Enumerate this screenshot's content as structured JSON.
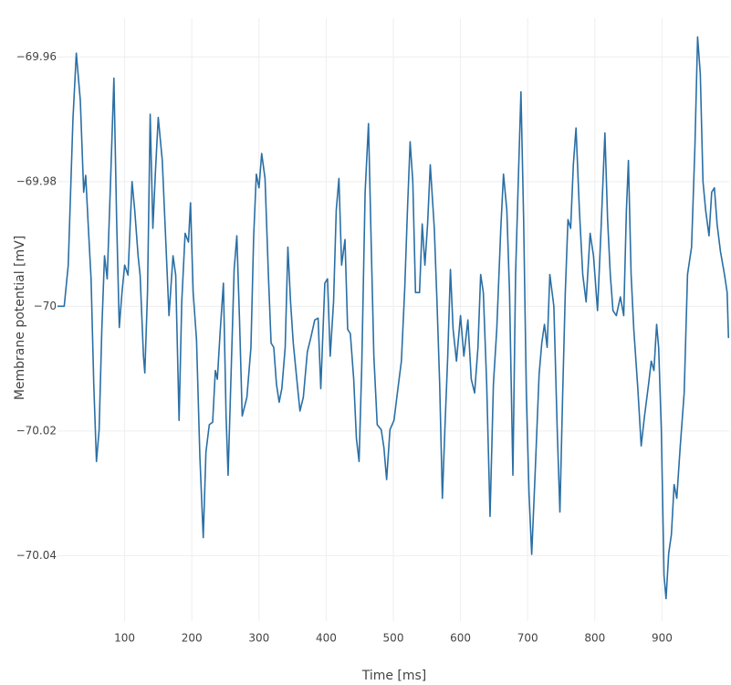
{
  "chart_data": {
    "type": "line",
    "x_label": "Time [ms]",
    "y_label": "Membrane potential [mV]",
    "color": "#2a6fa5",
    "grid": true,
    "xlim": [
      0,
      1000
    ],
    "ylim": [
      -70.0505,
      -69.9538
    ],
    "xticks": [
      100,
      200,
      300,
      400,
      500,
      600,
      700,
      800,
      900
    ],
    "yticks": [
      {
        "value": -69.96,
        "label": "−69.96"
      },
      {
        "value": -69.98,
        "label": "−69.98"
      },
      {
        "value": -70,
        "label": "−70"
      },
      {
        "value": -70.02,
        "label": "−70.02"
      },
      {
        "value": -70.04,
        "label": "−70.04"
      }
    ],
    "x": [
      0,
      10,
      16,
      23,
      28,
      34,
      39,
      42,
      46,
      50,
      54,
      58,
      62,
      66,
      70,
      74,
      79,
      84,
      88,
      92,
      96,
      100,
      105,
      111,
      115,
      120,
      123,
      128,
      130,
      134,
      138,
      142,
      146,
      150,
      156,
      161,
      166,
      172,
      176,
      181,
      185,
      190,
      195,
      198,
      202,
      207,
      212,
      217,
      221,
      226,
      231,
      235,
      238,
      242,
      247,
      251,
      254,
      259,
      263,
      267,
      271,
      275,
      282,
      288,
      292,
      296,
      300,
      304,
      309,
      314,
      318,
      322,
      326,
      330,
      334,
      339,
      343,
      347,
      351,
      357,
      361,
      366,
      372,
      377,
      383,
      388,
      392,
      398,
      402,
      406,
      411,
      415,
      419,
      423,
      428,
      432,
      436,
      441,
      445,
      449,
      453,
      458,
      463,
      467,
      471,
      476,
      482,
      486,
      490,
      495,
      501,
      506,
      512,
      517,
      521,
      525,
      529,
      533,
      539,
      543,
      547,
      551,
      555,
      561,
      565,
      569,
      573,
      577,
      581,
      585,
      589,
      594,
      600,
      605,
      611,
      616,
      621,
      626,
      630,
      634,
      639,
      644,
      649,
      654,
      660,
      664,
      669,
      673,
      678,
      682,
      686,
      690,
      694,
      698,
      702,
      706,
      711,
      717,
      721,
      725,
      729,
      733,
      739,
      744,
      748,
      752,
      756,
      760,
      764,
      768,
      772,
      777,
      782,
      787,
      793,
      798,
      804,
      809,
      815,
      819,
      823,
      827,
      832,
      838,
      843,
      847,
      850,
      854,
      858,
      864,
      869,
      874,
      880,
      884,
      888,
      892,
      895,
      899,
      903,
      906,
      910,
      914,
      918,
      922,
      927,
      933,
      938,
      944,
      949,
      953,
      957,
      961,
      965,
      970,
      974,
      978,
      982,
      987,
      993,
      997,
      999
    ],
    "values": [
      -70.0,
      -70.0,
      -69.9934,
      -69.97,
      -69.9594,
      -69.967,
      -69.9817,
      -69.979,
      -69.9875,
      -69.9956,
      -70.0125,
      -70.0249,
      -70.0198,
      -70.0037,
      -69.9919,
      -69.9956,
      -69.98,
      -69.9634,
      -69.986,
      -70.0034,
      -69.9978,
      -69.9934,
      -69.995,
      -69.98,
      -69.9846,
      -69.9919,
      -69.995,
      -70.008,
      -70.0107,
      -69.9978,
      -69.9692,
      -69.9875,
      -69.978,
      -69.9697,
      -69.9766,
      -69.989,
      -70.0015,
      -69.9919,
      -69.995,
      -70.0183,
      -69.9993,
      -69.9883,
      -69.9897,
      -69.9834,
      -69.9978,
      -70.0054,
      -70.0242,
      -70.0371,
      -70.0234,
      -70.019,
      -70.0186,
      -70.0103,
      -70.0117,
      -70.0044,
      -69.9963,
      -70.0176,
      -70.0271,
      -70.0088,
      -69.9941,
      -69.9887,
      -70.0022,
      -70.0176,
      -70.0146,
      -70.0066,
      -69.989,
      -69.9788,
      -69.981,
      -69.9755,
      -69.9795,
      -69.995,
      -70.0059,
      -70.0066,
      -70.0125,
      -70.0154,
      -70.0132,
      -70.0066,
      -69.9905,
      -69.9993,
      -70.0059,
      -70.0125,
      -70.0168,
      -70.0146,
      -70.0073,
      -70.0051,
      -70.0022,
      -70.0019,
      -70.0132,
      -69.9963,
      -69.9956,
      -70.008,
      -69.9993,
      -69.9846,
      -69.9795,
      -69.9934,
      -69.9893,
      -70.0037,
      -70.0044,
      -70.0117,
      -70.0212,
      -70.0249,
      -70.0095,
      -69.9817,
      -69.9707,
      -69.9897,
      -70.008,
      -70.019,
      -70.0198,
      -70.0227,
      -70.0278,
      -70.0198,
      -70.0183,
      -70.0139,
      -70.0088,
      -69.9971,
      -69.9846,
      -69.9736,
      -69.98,
      -69.9978,
      -69.9978,
      -69.9868,
      -69.9934,
      -69.9868,
      -69.9773,
      -69.9875,
      -69.9993,
      -70.0125,
      -70.0308,
      -70.019,
      -70.008,
      -69.9941,
      -70.0037,
      -70.0088,
      -70.0015,
      -70.008,
      -70.0022,
      -70.0117,
      -70.0139,
      -70.0066,
      -69.9949,
      -69.9978,
      -70.0125,
      -70.0337,
      -70.0125,
      -70.0037,
      -69.9875,
      -69.9788,
      -69.9846,
      -69.9978,
      -70.0271,
      -69.9949,
      -69.98,
      -69.9656,
      -69.9861,
      -70.0139,
      -70.03,
      -70.0398,
      -70.0271,
      -70.011,
      -70.0059,
      -70.0029,
      -70.0066,
      -69.9949,
      -70.0,
      -70.0198,
      -70.033,
      -70.0146,
      -69.9978,
      -69.9861,
      -69.9875,
      -69.9773,
      -69.9714,
      -69.9846,
      -69.9949,
      -69.9993,
      -69.9883,
      -69.9919,
      -70.0007,
      -69.9883,
      -69.9722,
      -69.9861,
      -69.9949,
      -70.0007,
      -70.0015,
      -69.9985,
      -70.0015,
      -69.9846,
      -69.9766,
      -69.9949,
      -70.0037,
      -70.0132,
      -70.0224,
      -70.0176,
      -70.0125,
      -70.0088,
      -70.0103,
      -70.0029,
      -70.0066,
      -70.0198,
      -70.0432,
      -70.0469,
      -70.0396,
      -70.0366,
      -70.0286,
      -70.0308,
      -70.0227,
      -70.0139,
      -69.9949,
      -69.9905,
      -69.9744,
      -69.9568,
      -69.9627,
      -69.98,
      -69.9846,
      -69.9887,
      -69.9817,
      -69.981,
      -69.9868,
      -69.9912,
      -69.9949,
      -69.9978,
      -70.0051
    ]
  }
}
